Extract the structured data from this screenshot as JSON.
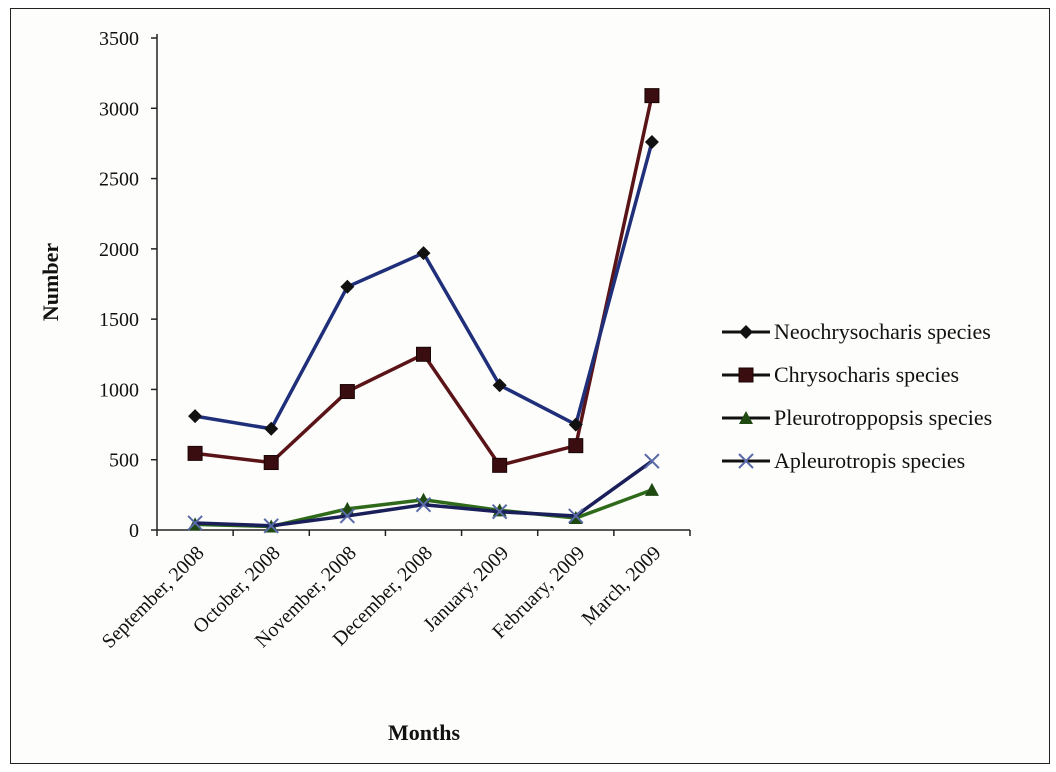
{
  "chart_data": {
    "type": "line",
    "title": "",
    "xlabel": "Months",
    "ylabel": "Number",
    "categories": [
      "September, 2008",
      "October, 2008",
      "November, 2008",
      "December, 2008",
      "January, 2009",
      "February, 2009",
      "March, 2009"
    ],
    "ylim": [
      0,
      3500
    ],
    "yticks": [
      0,
      500,
      1000,
      1500,
      2000,
      2500,
      3000,
      3500
    ],
    "grid": false,
    "legend_position": "right",
    "series": [
      {
        "name": "Neochrysocharis species",
        "values": [
          810,
          720,
          1730,
          1970,
          1030,
          750,
          2760
        ],
        "color": "#1f2f7a",
        "marker": "diamond"
      },
      {
        "name": "Chrysocharis species",
        "values": [
          545,
          480,
          985,
          1250,
          460,
          600,
          3090
        ],
        "color": "#5a1418",
        "marker": "square"
      },
      {
        "name": "Pleurotroppopsis species",
        "values": [
          40,
          25,
          150,
          215,
          140,
          85,
          285
        ],
        "color": "#2e6a1a",
        "marker": "triangle"
      },
      {
        "name": "Apleurotropis species",
        "values": [
          50,
          30,
          100,
          180,
          130,
          100,
          490
        ],
        "color": "#1a1f5a",
        "marker": "x"
      }
    ]
  }
}
